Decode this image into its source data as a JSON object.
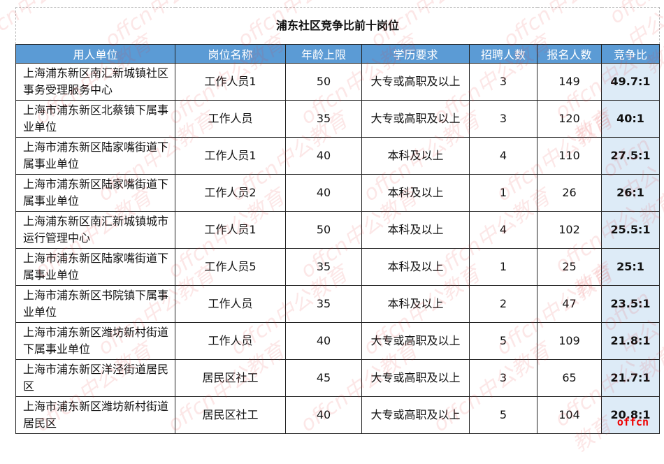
{
  "title": "浦东社区竞争比前十岗位",
  "headers": [
    "用人单位",
    "岗位名称",
    "年龄上限",
    "学历要求",
    "招聘人数",
    "报名人数",
    "竞争比"
  ],
  "rows": [
    [
      "上海浦东新区南汇新城镇社区事务受理服务中心",
      "工作人员1",
      "50",
      "大专或高职及以上",
      "3",
      "149",
      "49.7:1"
    ],
    [
      "上海市浦东新区北蔡镇下属事业单位",
      "工作人员",
      "35",
      "大专或高职及以上",
      "3",
      "120",
      "40:1"
    ],
    [
      "上海市浦东新区陆家嘴街道下属事业单位",
      "工作人员1",
      "40",
      "本科及以上",
      "4",
      "110",
      "27.5:1"
    ],
    [
      "上海市浦东新区陆家嘴街道下属事业单位",
      "工作人员2",
      "40",
      "本科及以上",
      "1",
      "26",
      "26:1"
    ],
    [
      "上海浦东新区南汇新城镇城市运行管理中心",
      "工作人员1",
      "50",
      "本科及以上",
      "4",
      "102",
      "25.5:1"
    ],
    [
      "上海市浦东新区陆家嘴街道下属事业单位",
      "工作人员5",
      "35",
      "本科及以上",
      "1",
      "25",
      "25:1"
    ],
    [
      "上海市浦东新区书院镇下属事业单位",
      "工作人员",
      "35",
      "本科及以上",
      "2",
      "47",
      "23.5:1"
    ],
    [
      "上海市浦东新区潍坊新村街道下属事业单位",
      "工作人员",
      "40",
      "大专或高职及以上",
      "5",
      "109",
      "21.8:1"
    ],
    [
      "上海市浦东新区洋泾街道居民区",
      "居民区社工",
      "45",
      "大专或高职及以上",
      "3",
      "65",
      "21.7:1"
    ],
    [
      "上海市浦东新区潍坊新村街道居民区",
      "居民区社工",
      "40",
      "大专或高职及以上",
      "5",
      "104",
      "20.8:1"
    ]
  ],
  "logo": "offcn",
  "watermark": "offcn中公教育"
}
